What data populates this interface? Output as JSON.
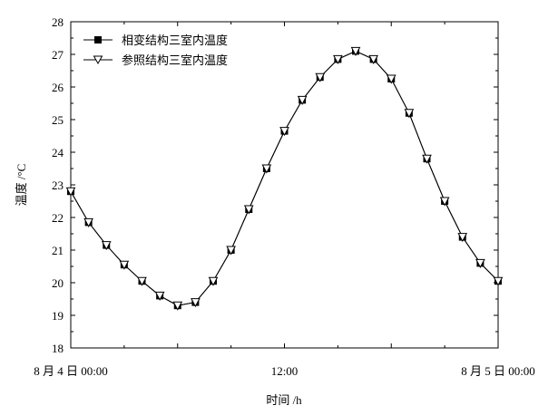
{
  "chart_data": {
    "type": "line",
    "xlabel": "时间 /h",
    "ylabel": "温度 /°C",
    "ylim": [
      18,
      28
    ],
    "yticks": [
      18,
      19,
      20,
      21,
      22,
      23,
      24,
      25,
      26,
      27,
      28
    ],
    "xlim": [
      0,
      24
    ],
    "xtick_values": [
      0,
      12,
      24
    ],
    "xtick_labels": [
      "8 月 4 日 00:00",
      "12:00",
      "8 月 5 日 00:00"
    ],
    "grid": false,
    "legend_position": "top-left",
    "series": [
      {
        "name": "相变结构三室内温度",
        "marker": "square",
        "x": [
          0,
          1,
          2,
          3,
          4,
          5,
          6,
          7,
          8,
          9,
          10,
          11,
          12,
          13,
          14,
          15,
          16,
          17,
          18,
          19,
          20,
          21,
          22,
          23,
          24
        ],
        "y": [
          22.8,
          21.85,
          21.15,
          20.55,
          20.05,
          19.6,
          19.3,
          19.4,
          20.05,
          21.0,
          22.25,
          23.5,
          24.65,
          25.6,
          26.3,
          26.85,
          27.1,
          26.85,
          26.25,
          25.2,
          23.8,
          22.5,
          21.4,
          20.6,
          20.05
        ]
      },
      {
        "name": "参照结构三室内温度",
        "marker": "triangle-down",
        "x": [
          0,
          1,
          2,
          3,
          4,
          5,
          6,
          7,
          8,
          9,
          10,
          11,
          12,
          13,
          14,
          15,
          16,
          17,
          18,
          19,
          20,
          21,
          22,
          23,
          24
        ],
        "y": [
          22.8,
          21.85,
          21.15,
          20.55,
          20.05,
          19.6,
          19.3,
          19.4,
          20.05,
          21.0,
          22.25,
          23.5,
          24.65,
          25.6,
          26.3,
          26.85,
          27.1,
          26.85,
          26.25,
          25.2,
          23.8,
          22.5,
          21.4,
          20.6,
          20.05
        ]
      }
    ]
  }
}
